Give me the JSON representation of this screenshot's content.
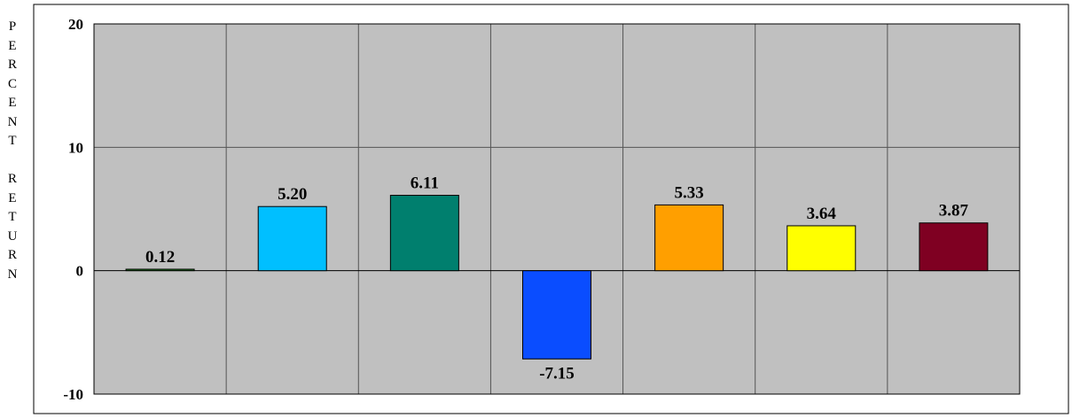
{
  "chart_data": {
    "type": "bar",
    "ylabel": "PERCENT RETURN",
    "ylim": [
      -10,
      20
    ],
    "yticks": [
      "20",
      "10",
      "0",
      "-10"
    ],
    "ytick_values": [
      20,
      10,
      0,
      -10
    ],
    "grid": true,
    "series": [
      {
        "values": [
          0.12,
          5.2,
          6.11,
          -7.15,
          5.33,
          3.64,
          3.87
        ],
        "labels": [
          "0.12",
          "5.20",
          "6.11",
          "-7.15",
          "5.33",
          "3.64",
          "3.87"
        ],
        "colors": [
          "#1f7a1f",
          "#00bfff",
          "#007f6e",
          "#0a4dff",
          "#ff9f00",
          "#ffff00",
          "#7f0022"
        ]
      }
    ],
    "plot_background": "#c0c0c0"
  }
}
